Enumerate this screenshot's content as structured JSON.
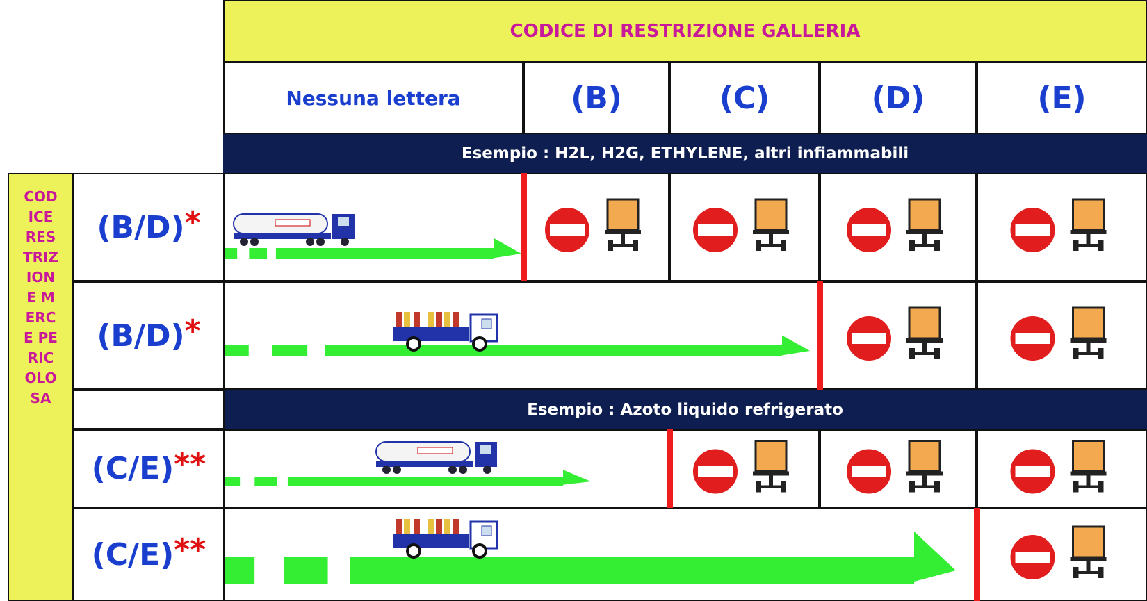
{
  "header": {
    "title": "CODICE DI RESTRIZIONE GALLERIA"
  },
  "columns": [
    "Nessuna lettera",
    "(B)",
    "(C)",
    "(D)",
    "(E)"
  ],
  "examples": [
    "Esempio : H2L, H2G, ETHYLENE, altri infiammabili",
    "Esempio : Azoto liquido refrigerato"
  ],
  "side_label": "CODICE RESTRIZIONE MERCE PERICOLOSA",
  "rows": [
    {
      "label": "(B/D)",
      "mark": "*"
    },
    {
      "label": "(B/D)",
      "mark": "*"
    },
    {
      "label": "(C/E)",
      "mark": "**"
    },
    {
      "label": "(C/E)",
      "mark": "**"
    }
  ]
}
